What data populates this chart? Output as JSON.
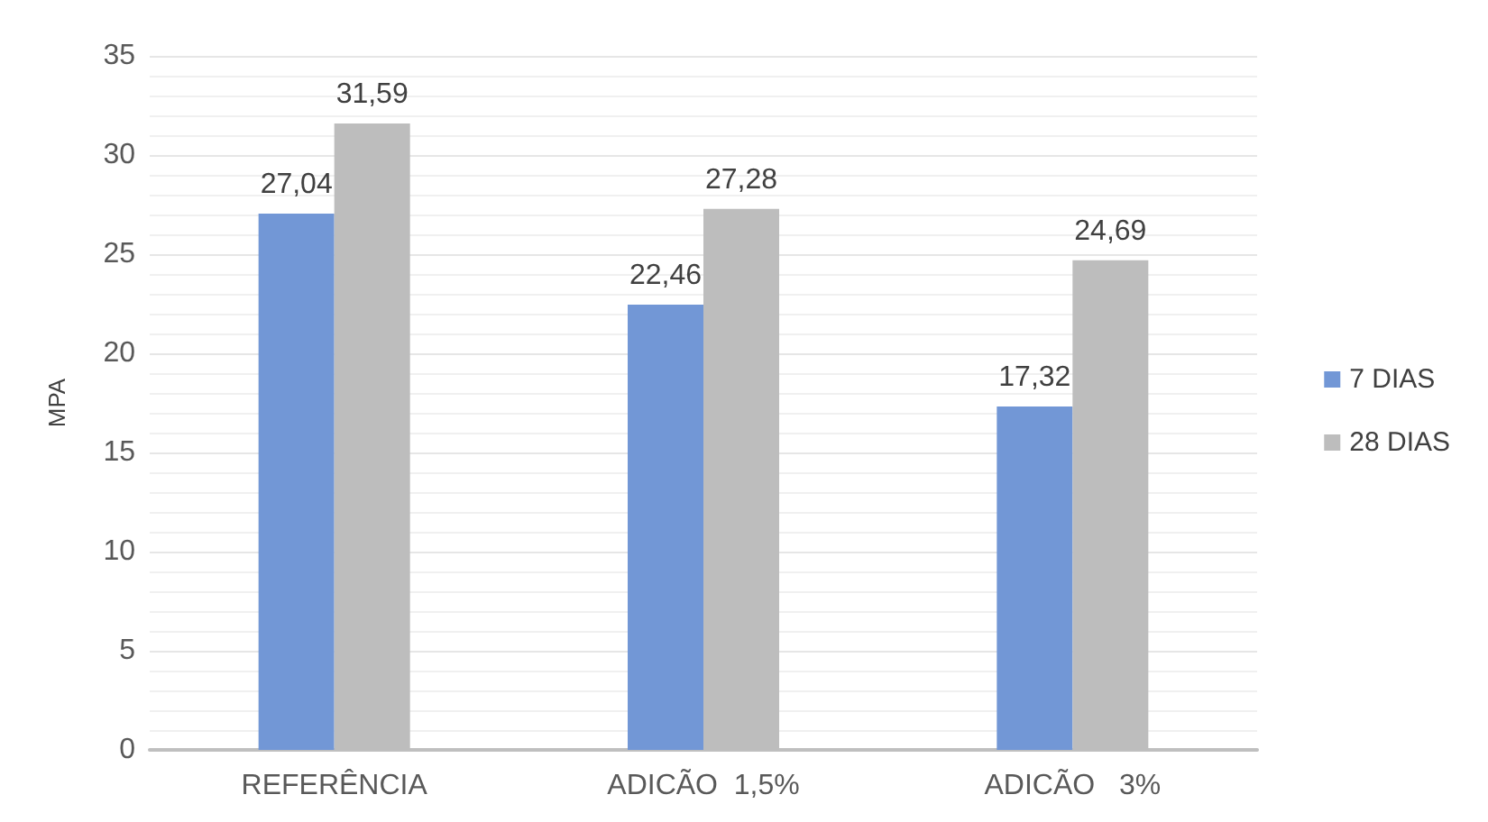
{
  "chart_data": {
    "type": "bar",
    "ylabel": "MPA",
    "categories": [
      "REFERÊNCIA",
      "ADICÃO  1,5%",
      "ADICÃO   3%"
    ],
    "series": [
      {
        "name": "7 DIAS",
        "color": "#7297d6",
        "values": [
          27.04,
          22.46,
          17.32
        ],
        "value_labels": [
          "27,04",
          "22,46",
          "17,32"
        ]
      },
      {
        "name": "28 DIAS",
        "color": "#bdbdbd",
        "values": [
          31.59,
          27.28,
          24.69
        ],
        "value_labels": [
          "31,59",
          "27,28",
          "24,69"
        ]
      }
    ],
    "ylim": [
      0,
      35
    ],
    "yticks": [
      0,
      5,
      10,
      15,
      20,
      25,
      30,
      35
    ],
    "grid": "y",
    "legend": "right"
  }
}
